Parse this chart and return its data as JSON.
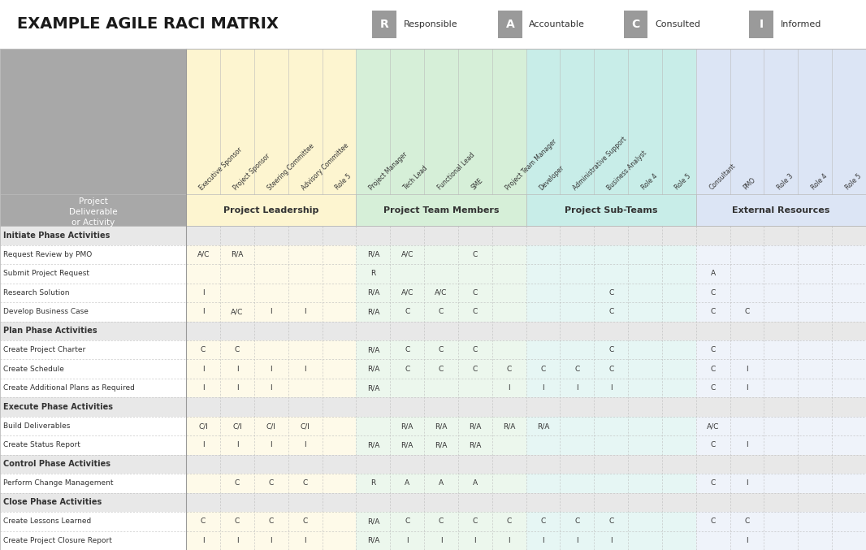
{
  "title": "EXAMPLE AGILE RACI MATRIX",
  "legend_items": [
    {
      "letter": "R",
      "label": "Responsible"
    },
    {
      "letter": "A",
      "label": "Accountable"
    },
    {
      "letter": "C",
      "label": "Consulted"
    },
    {
      "letter": "I",
      "label": "Informed"
    }
  ],
  "col_groups": [
    {
      "name": "Project Leadership",
      "color": "#FDF5D0",
      "start": 0,
      "end": 4
    },
    {
      "name": "Project Team Members",
      "color": "#D6EFD8",
      "start": 5,
      "end": 9
    },
    {
      "name": "Project Sub-Teams",
      "color": "#C8EDE8",
      "start": 10,
      "end": 14
    },
    {
      "name": "External Resources",
      "color": "#DCE5F5",
      "start": 15,
      "end": 19
    }
  ],
  "col_colors": [
    "#FDF5D0",
    "#FDF5D0",
    "#FDF5D0",
    "#FDF5D0",
    "#FDF5D0",
    "#D6EFD8",
    "#D6EFD8",
    "#D6EFD8",
    "#D6EFD8",
    "#D6EFD8",
    "#C8EDE8",
    "#C8EDE8",
    "#C8EDE8",
    "#C8EDE8",
    "#C8EDE8",
    "#DCE5F5",
    "#DCE5F5",
    "#DCE5F5",
    "#DCE5F5",
    "#DCE5F5"
  ],
  "columns": [
    "Executive Sponsor",
    "Project Sponsor",
    "Steering Committee",
    "Advisory Committee",
    "Role 5",
    "Project Manager",
    "Tech Lead",
    "Functional Lead",
    "SME",
    "Project Team Manager",
    "Developer",
    "Administrative Support",
    "Business Analyst",
    "Role 4",
    "Role 5",
    "Consultant",
    "PMO",
    "Role 3",
    "Role 4",
    "Role 5"
  ],
  "rows": [
    {
      "label": "Initiate Phase Activities",
      "phase": true,
      "data": [
        "",
        "",
        "",
        "",
        "",
        "",
        "",
        "",
        "",
        "",
        "",
        "",
        "",
        "",
        "",
        "",
        "",
        "",
        "",
        ""
      ]
    },
    {
      "label": "Request Review by PMO",
      "phase": false,
      "data": [
        "A/C",
        "R/A",
        "",
        "",
        "",
        "R/A",
        "A/C",
        "",
        "C",
        "",
        "",
        "",
        "",
        "",
        "",
        "",
        "",
        "",
        "",
        ""
      ]
    },
    {
      "label": "Submit Project Request",
      "phase": false,
      "data": [
        "",
        "",
        "",
        "",
        "",
        "R",
        "",
        "",
        "",
        "",
        "",
        "",
        "",
        "",
        "",
        "A",
        "",
        "",
        "",
        ""
      ]
    },
    {
      "label": "Research Solution",
      "phase": false,
      "data": [
        "I",
        "",
        "",
        "",
        "",
        "R/A",
        "A/C",
        "A/C",
        "C",
        "",
        "",
        "",
        "C",
        "",
        "",
        "C",
        "",
        "",
        "",
        ""
      ]
    },
    {
      "label": "Develop Business Case",
      "phase": false,
      "data": [
        "I",
        "A/C",
        "I",
        "I",
        "",
        "R/A",
        "C",
        "C",
        "C",
        "",
        "",
        "",
        "C",
        "",
        "",
        "C",
        "C",
        "",
        "",
        ""
      ]
    },
    {
      "label": "Plan Phase Activities",
      "phase": true,
      "data": [
        "",
        "",
        "",
        "",
        "",
        "",
        "",
        "",
        "",
        "",
        "",
        "",
        "",
        "",
        "",
        "",
        "",
        "",
        "",
        ""
      ]
    },
    {
      "label": "Create Project Charter",
      "phase": false,
      "data": [
        "C",
        "C",
        "",
        "",
        "",
        "R/A",
        "C",
        "C",
        "C",
        "",
        "",
        "",
        "C",
        "",
        "",
        "C",
        "",
        "",
        "",
        ""
      ]
    },
    {
      "label": "Create Schedule",
      "phase": false,
      "data": [
        "I",
        "I",
        "I",
        "I",
        "",
        "R/A",
        "C",
        "C",
        "C",
        "C",
        "C",
        "C",
        "C",
        "",
        "",
        "C",
        "I",
        "",
        "",
        ""
      ]
    },
    {
      "label": "Create Additional Plans as Required",
      "phase": false,
      "data": [
        "I",
        "I",
        "I",
        "",
        "",
        "R/A",
        "",
        "",
        "",
        "I",
        "I",
        "I",
        "I",
        "",
        "",
        "C",
        "I",
        "",
        "",
        ""
      ]
    },
    {
      "label": "Execute Phase Activities",
      "phase": true,
      "data": [
        "",
        "",
        "",
        "",
        "",
        "",
        "",
        "",
        "",
        "",
        "",
        "",
        "",
        "",
        "",
        "",
        "",
        "",
        "",
        ""
      ]
    },
    {
      "label": "Build Deliverables",
      "phase": false,
      "data": [
        "C/I",
        "C/I",
        "C/I",
        "C/I",
        "",
        "",
        "R/A",
        "R/A",
        "R/A",
        "R/A",
        "R/A",
        "",
        "",
        "",
        "",
        "A/C",
        "",
        "",
        "",
        ""
      ]
    },
    {
      "label": "Create Status Report",
      "phase": false,
      "data": [
        "I",
        "I",
        "I",
        "I",
        "",
        "R/A",
        "R/A",
        "R/A",
        "R/A",
        "",
        "",
        "",
        "",
        "",
        "",
        "C",
        "I",
        "",
        "",
        ""
      ]
    },
    {
      "label": "Control Phase Activities",
      "phase": true,
      "data": [
        "",
        "",
        "",
        "",
        "",
        "",
        "",
        "",
        "",
        "",
        "",
        "",
        "",
        "",
        "",
        "",
        "",
        "",
        "",
        ""
      ]
    },
    {
      "label": "Perform Change Management",
      "phase": false,
      "data": [
        "",
        "C",
        "C",
        "C",
        "",
        "R",
        "A",
        "A",
        "A",
        "",
        "",
        "",
        "",
        "",
        "",
        "C",
        "I",
        "",
        "",
        ""
      ]
    },
    {
      "label": "Close Phase Activities",
      "phase": true,
      "data": [
        "",
        "",
        "",
        "",
        "",
        "",
        "",
        "",
        "",
        "",
        "",
        "",
        "",
        "",
        "",
        "",
        "",
        "",
        "",
        ""
      ]
    },
    {
      "label": "Create Lessons Learned",
      "phase": false,
      "data": [
        "C",
        "C",
        "C",
        "C",
        "",
        "R/A",
        "C",
        "C",
        "C",
        "C",
        "C",
        "C",
        "C",
        "",
        "",
        "C",
        "C",
        "",
        "",
        ""
      ]
    },
    {
      "label": "Create Project Closure Report",
      "phase": false,
      "data": [
        "I",
        "I",
        "I",
        "I",
        "",
        "R/A",
        "I",
        "I",
        "I",
        "I",
        "I",
        "I",
        "I",
        "",
        "",
        "",
        "I",
        "",
        "",
        ""
      ]
    }
  ],
  "bg_color": "#FFFFFF",
  "title_color": "#1a1a1a",
  "phase_row_color": "#E8E8E8",
  "header_bg_color": "#A8A8A8",
  "legend_box_color": "#9A9A9A",
  "grid_color": "#BBBBBB",
  "cell_text_color": "#333333"
}
